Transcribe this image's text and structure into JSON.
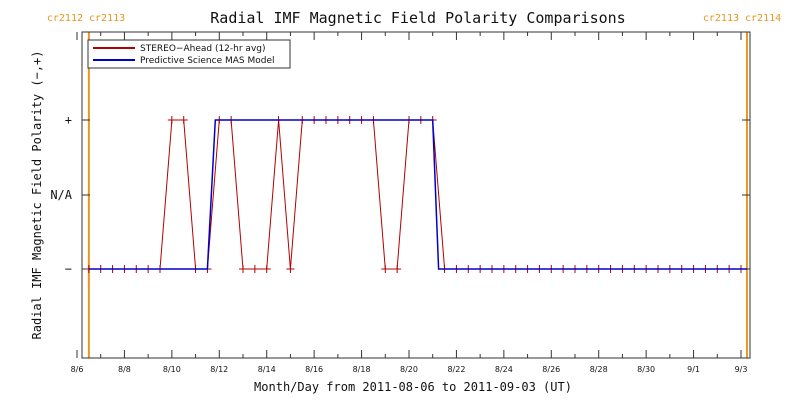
{
  "chart_data": {
    "type": "line",
    "title": "Radial IMF Magnetic Field Polarity Comparisons",
    "xlabel": "Month/Day from 2011-08-06 to 2011-09-03 (UT)",
    "ylabel": "Radial IMF Magnetic Field Polarity (−,+)",
    "x_start": "2011-08-06",
    "x_end": "2011-09-03",
    "x_ticks": [
      "8/6",
      "8/8",
      "8/10",
      "8/12",
      "8/14",
      "8/16",
      "8/18",
      "8/20",
      "8/22",
      "8/24",
      "8/26",
      "8/28",
      "8/30",
      "9/1",
      "9/3"
    ],
    "y_ticks": [
      "−",
      "N/A",
      "+"
    ],
    "y_levels": {
      "−": -1,
      "N/A": 0,
      "+": 1
    },
    "ylim": [
      -2,
      2
    ],
    "carrington_markers": [
      {
        "date": "2011-08-06T12:00",
        "label": "cr2112 cr2113",
        "color": "#e8961c"
      },
      {
        "date": "2011-09-03T06:00",
        "label": "cr2113 cr2114",
        "color": "#e8961c"
      }
    ],
    "legend_position": "top-left",
    "series": [
      {
        "name": "STEREO−Ahead (12-hr avg)",
        "color": "#b30000",
        "markers": true,
        "points": [
          [
            "2011-08-06T12:00",
            -1
          ],
          [
            "2011-08-07T00:00",
            -1
          ],
          [
            "2011-08-07T12:00",
            -1
          ],
          [
            "2011-08-08T00:00",
            -1
          ],
          [
            "2011-08-08T12:00",
            -1
          ],
          [
            "2011-08-09T00:00",
            -1
          ],
          [
            "2011-08-09T12:00",
            -1
          ],
          [
            "2011-08-10T00:00",
            1
          ],
          [
            "2011-08-10T12:00",
            1
          ],
          [
            "2011-08-11T00:00",
            -1
          ],
          [
            "2011-08-11T12:00",
            -1
          ],
          [
            "2011-08-12T00:00",
            1
          ],
          [
            "2011-08-12T12:00",
            1
          ],
          [
            "2011-08-13T00:00",
            -1
          ],
          [
            "2011-08-13T12:00",
            -1
          ],
          [
            "2011-08-14T00:00",
            -1
          ],
          [
            "2011-08-14T12:00",
            1
          ],
          [
            "2011-08-15T00:00",
            -1
          ],
          [
            "2011-08-15T12:00",
            1
          ],
          [
            "2011-08-16T00:00",
            1
          ],
          [
            "2011-08-16T12:00",
            1
          ],
          [
            "2011-08-17T00:00",
            1
          ],
          [
            "2011-08-17T12:00",
            1
          ],
          [
            "2011-08-18T00:00",
            1
          ],
          [
            "2011-08-18T12:00",
            1
          ],
          [
            "2011-08-19T00:00",
            -1
          ],
          [
            "2011-08-19T12:00",
            -1
          ],
          [
            "2011-08-20T00:00",
            1
          ],
          [
            "2011-08-20T12:00",
            1
          ],
          [
            "2011-08-21T00:00",
            1
          ],
          [
            "2011-08-21T12:00",
            -1
          ],
          [
            "2011-08-22T00:00",
            -1
          ],
          [
            "2011-08-22T12:00",
            -1
          ],
          [
            "2011-08-23T00:00",
            -1
          ],
          [
            "2011-08-23T12:00",
            -1
          ],
          [
            "2011-08-24T00:00",
            -1
          ],
          [
            "2011-08-24T12:00",
            -1
          ],
          [
            "2011-08-25T00:00",
            -1
          ],
          [
            "2011-08-25T12:00",
            -1
          ],
          [
            "2011-08-26T00:00",
            -1
          ],
          [
            "2011-08-26T12:00",
            -1
          ],
          [
            "2011-08-27T00:00",
            -1
          ],
          [
            "2011-08-27T12:00",
            -1
          ],
          [
            "2011-08-28T00:00",
            -1
          ],
          [
            "2011-08-28T12:00",
            -1
          ],
          [
            "2011-08-29T00:00",
            -1
          ],
          [
            "2011-08-29T12:00",
            -1
          ],
          [
            "2011-08-30T00:00",
            -1
          ],
          [
            "2011-08-30T12:00",
            -1
          ],
          [
            "2011-08-31T00:00",
            -1
          ],
          [
            "2011-08-31T12:00",
            -1
          ],
          [
            "2011-09-01T00:00",
            -1
          ],
          [
            "2011-09-01T12:00",
            -1
          ],
          [
            "2011-09-02T00:00",
            -1
          ],
          [
            "2011-09-02T12:00",
            -1
          ],
          [
            "2011-09-03T00:00",
            -1
          ]
        ]
      },
      {
        "name": "Predictive Science MAS Model",
        "color": "#0000cc",
        "markers": false,
        "points": [
          [
            "2011-08-06T12:00",
            -1
          ],
          [
            "2011-08-11T12:00",
            -1
          ],
          [
            "2011-08-11T20:00",
            1
          ],
          [
            "2011-08-21T00:00",
            1
          ],
          [
            "2011-08-21T06:00",
            -1
          ],
          [
            "2011-09-03T06:00",
            -1
          ]
        ]
      }
    ]
  }
}
